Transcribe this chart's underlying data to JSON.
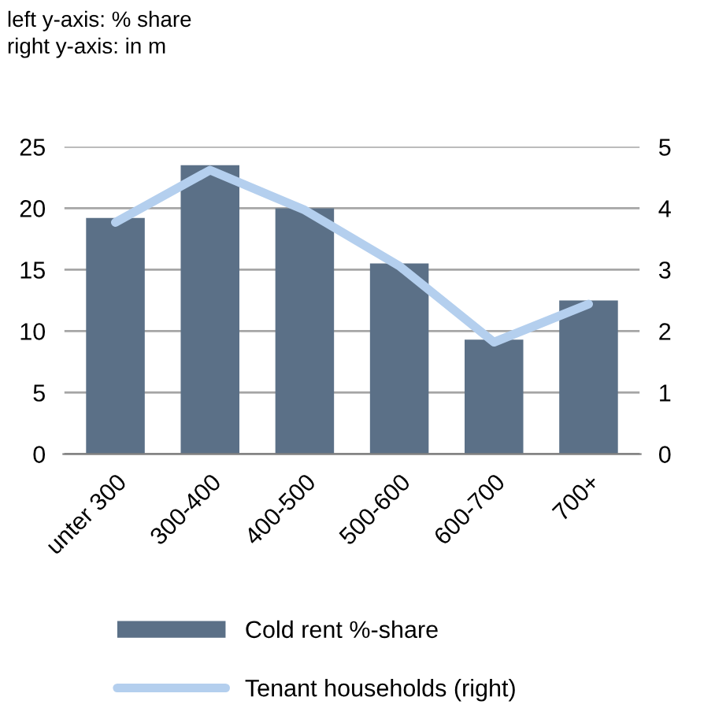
{
  "chart_data": {
    "type": "bar",
    "annotations": [
      "left y-axis: % share\nright y-axis: in m"
    ],
    "categories": [
      "unter 300",
      "300-400",
      "400-500",
      "500-600",
      "600-700",
      "700+"
    ],
    "series": [
      {
        "name": "Cold rent %-share",
        "color": "#5b7087",
        "values": [
          19.2,
          23.5,
          20,
          15.5,
          9.3,
          12.5
        ]
      },
      {
        "name": "Tenant households (right)",
        "type": "line",
        "axis": "y2",
        "color": "#b4cfee",
        "values": [
          3.77,
          4.62,
          3.97,
          3.06,
          1.82,
          2.44
        ]
      }
    ],
    "ylim": [
      0,
      25
    ],
    "yticks": [
      0,
      5,
      10,
      15,
      20,
      25
    ],
    "y2lim": [
      0,
      5
    ],
    "y2ticks": [
      0,
      1,
      2,
      3,
      4,
      5
    ],
    "grid": "y",
    "legend": "bottom",
    "marker": "none",
    "line_style": "solid"
  }
}
